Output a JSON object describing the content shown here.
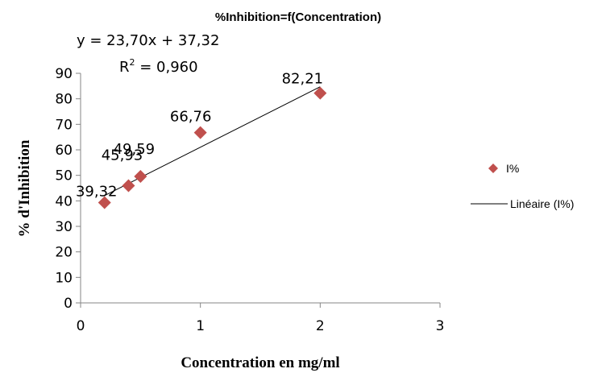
{
  "chart_data": {
    "type": "scatter",
    "title": "%Inhibition=f(Concentration)",
    "xlabel": "Concentration en mg/ml",
    "ylabel": "% d'Inhibition",
    "xlim": [
      0,
      3
    ],
    "ylim": [
      0,
      90
    ],
    "xticks": [
      "0",
      "1",
      "2",
      "3"
    ],
    "yticks": [
      "0",
      "10",
      "20",
      "30",
      "40",
      "50",
      "60",
      "70",
      "80",
      "90"
    ],
    "grid": false,
    "legend_position": "right",
    "series": [
      {
        "name": "I%",
        "color": "#c0504d",
        "marker": "diamond",
        "points": [
          {
            "x": 0.2,
            "y": 39.32,
            "label": "39,32"
          },
          {
            "x": 0.4,
            "y": 45.93,
            "label": "45,93"
          },
          {
            "x": 0.5,
            "y": 49.59,
            "label": "49,59"
          },
          {
            "x": 1.0,
            "y": 66.76,
            "label": "66,76"
          },
          {
            "x": 2.0,
            "y": 82.21,
            "label": "82,21"
          }
        ]
      }
    ],
    "trendline": {
      "name": "Linéaire (I%)",
      "type": "linear",
      "slope": 23.7,
      "intercept": 37.32,
      "x_range": [
        0.2,
        2.0
      ],
      "color": "#000000",
      "equation": "y = 23,70x + 37,32",
      "r2_prefix": "R",
      "r2_sup": "2",
      "r2_value": " = 0,960"
    }
  }
}
